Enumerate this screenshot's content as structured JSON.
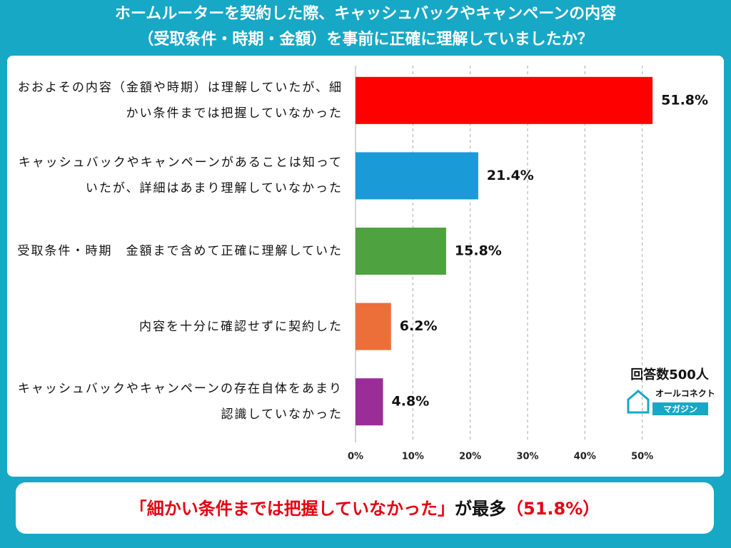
{
  "chart_data": {
    "type": "barh",
    "title": [
      "ホームルーターを契約した際、キャッシュバックやキャンペーンの内容",
      "（受取条件・時期・金額）を事前に正確に理解していましたか？"
    ],
    "categories": [
      "おおよその内容（金額や時期）は理解していたが、細かい条件までは把握していなかった",
      "キャッシュバックやキャンペーンがあることは知っていたが、詳細はあまり理解していなかった",
      "受取条件・時期　金額まで含めて正確に理解していた",
      "内容を十分に確認せずに契約した",
      "キャッシュバックやキャンペーンの存在自体をあまり認識していなかった"
    ],
    "values": [
      51.8,
      21.4,
      15.8,
      6.2,
      4.8
    ],
    "value_labels": [
      "51.8%",
      "21.4%",
      "15.8%",
      "6.2%",
      "4.8%"
    ],
    "colors": [
      "#ff0000",
      "#1a9ad6",
      "#4ea23f",
      "#ec6f3a",
      "#9b2d98"
    ],
    "xlim": [
      0,
      60
    ],
    "xticks": [
      {
        "value": 0,
        "label": "0%"
      },
      {
        "value": 10,
        "label": "10%"
      },
      {
        "value": 20,
        "label": "20%"
      },
      {
        "value": 30,
        "label": "30%"
      },
      {
        "value": 40,
        "label": "40%"
      },
      {
        "value": 50,
        "label": "50%"
      }
    ],
    "grid": true,
    "note": "回答数500人",
    "logo": {
      "name": "オールコネクト",
      "tagline": "マガジン"
    },
    "conclusion": [
      "「細かい条件までは把握していなかった」",
      "が最多",
      "（51.8%）"
    ]
  }
}
